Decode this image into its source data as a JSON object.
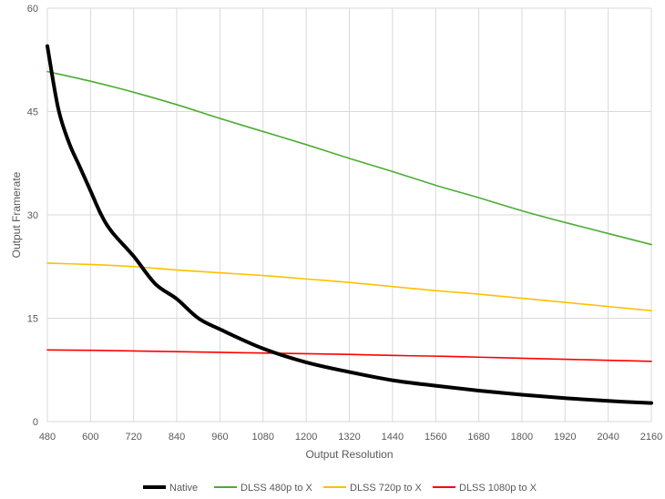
{
  "chart_data": {
    "type": "line",
    "title": "",
    "xlabel": "Output Resolution",
    "ylabel": "Output Framerate",
    "xlim": [
      480,
      2160
    ],
    "ylim": [
      0,
      60
    ],
    "xticks": [
      480,
      600,
      720,
      840,
      960,
      1080,
      1200,
      1320,
      1440,
      1560,
      1680,
      1800,
      1920,
      2040,
      2160
    ],
    "yticks": [
      0,
      15,
      30,
      45,
      60
    ],
    "grid": true,
    "legend_position": "bottom",
    "series": [
      {
        "name": "Native",
        "color": "#000000",
        "x": [
          480,
          510,
          540,
          570,
          600,
          630,
          660,
          720,
          780,
          840,
          900,
          960,
          1080,
          1200,
          1320,
          1440,
          1560,
          1680,
          1800,
          1920,
          2040,
          2160
        ],
        "y": [
          54.5,
          45.5,
          40.5,
          37.0,
          33.5,
          30.0,
          27.5,
          24.0,
          20.0,
          17.8,
          15.0,
          13.4,
          10.6,
          8.6,
          7.2,
          6.0,
          5.2,
          4.5,
          3.9,
          3.4,
          3.0,
          2.7
        ]
      },
      {
        "name": "DLSS 480p to X",
        "color": "#4CAC33",
        "x": [
          480,
          600,
          720,
          840,
          960,
          1080,
          1200,
          1320,
          1440,
          1560,
          1680,
          1800,
          1920,
          2040,
          2160
        ],
        "y": [
          50.8,
          49.4,
          47.8,
          46.0,
          44.0,
          42.1,
          40.2,
          38.2,
          36.3,
          34.3,
          32.5,
          30.6,
          28.9,
          27.3,
          25.7
        ]
      },
      {
        "name": "DLSS 720p to X",
        "color": "#FFC000",
        "x": [
          480,
          600,
          720,
          840,
          960,
          1080,
          1200,
          1320,
          1440,
          1560,
          1680,
          1800,
          1920,
          2040,
          2160
        ],
        "y": [
          23.0,
          22.8,
          22.5,
          22.0,
          21.6,
          21.2,
          20.7,
          20.2,
          19.6,
          19.0,
          18.5,
          17.9,
          17.3,
          16.7,
          16.1
        ]
      },
      {
        "name": "DLSS 1080p to X",
        "color": "#FF0000",
        "x": [
          480,
          600,
          720,
          840,
          960,
          1080,
          1200,
          1320,
          1440,
          1560,
          1680,
          1800,
          1920,
          2040,
          2160
        ],
        "y": [
          10.4,
          10.35,
          10.25,
          10.15,
          10.05,
          9.95,
          9.85,
          9.75,
          9.6,
          9.5,
          9.35,
          9.2,
          9.05,
          8.9,
          8.75
        ]
      }
    ]
  }
}
